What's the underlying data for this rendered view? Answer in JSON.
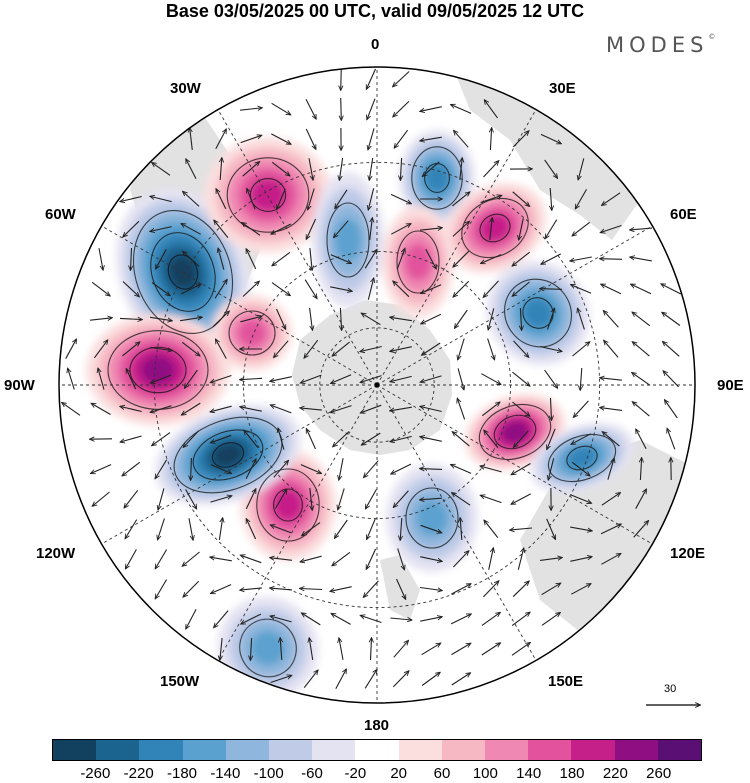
{
  "title": "Base 03/05/2025 00 UTC, valid 09/05/2025 12 UTC",
  "brand": "MODES",
  "brand_mark": "©",
  "longitude_labels": {
    "lon_0": "0",
    "lon_30e": "30E",
    "lon_60e": "60E",
    "lon_90e": "90E",
    "lon_120e": "120E",
    "lon_150e": "150E",
    "lon_180": "180",
    "lon_150w": "150W",
    "lon_120w": "120W",
    "lon_90w": "90W",
    "lon_60w": "60W",
    "lon_30w": "30W"
  },
  "reference_vector": {
    "value": "30"
  },
  "colorbar": {
    "colors": [
      "#12415f",
      "#1c6490",
      "#3184b8",
      "#5ba1cf",
      "#8fb6dc",
      "#bfcbe7",
      "#e4e3f2",
      "#ffffff",
      "#fbdede",
      "#f6b9c4",
      "#ef88b2",
      "#e2529d",
      "#c51f89",
      "#8f0e82",
      "#5a0f75"
    ],
    "ticks": [
      "-260",
      "-220",
      "-180",
      "-140",
      "-100",
      "-60",
      "-20",
      "20",
      "60",
      "100",
      "140",
      "180",
      "220",
      "260"
    ]
  },
  "chart_data": {
    "type": "heatmap",
    "projection": "south-polar-stereographic",
    "overlay": "wind-vectors",
    "colorbar_range": [
      -260,
      260
    ],
    "anomaly_centers": [
      {
        "sign": "negative",
        "value": -260,
        "near_lon": "60W",
        "description": "strong low"
      },
      {
        "sign": "positive",
        "value": 200,
        "near_lon": "30W"
      },
      {
        "sign": "negative",
        "value": -140,
        "near_lon": "15W"
      },
      {
        "sign": "negative",
        "value": -180,
        "near_lon": "15E"
      },
      {
        "sign": "positive",
        "value": 180,
        "near_lon": "45E"
      },
      {
        "sign": "positive",
        "value": 160,
        "near_lon": "25E"
      },
      {
        "sign": "negative",
        "value": -180,
        "near_lon": "70E"
      },
      {
        "sign": "positive",
        "value": 220,
        "near_lon": "100E"
      },
      {
        "sign": "negative",
        "value": -180,
        "near_lon": "105E"
      },
      {
        "sign": "negative",
        "value": -140,
        "near_lon": "170E"
      },
      {
        "sign": "positive",
        "value": 200,
        "near_lon": "140W"
      },
      {
        "sign": "negative",
        "value": -260,
        "near_lon": "115W"
      },
      {
        "sign": "positive",
        "value": 220,
        "near_lon": "90W"
      },
      {
        "sign": "positive",
        "value": 140,
        "near_lon": "70W"
      },
      {
        "sign": "negative",
        "value": -140,
        "near_lon": "150W"
      }
    ]
  }
}
